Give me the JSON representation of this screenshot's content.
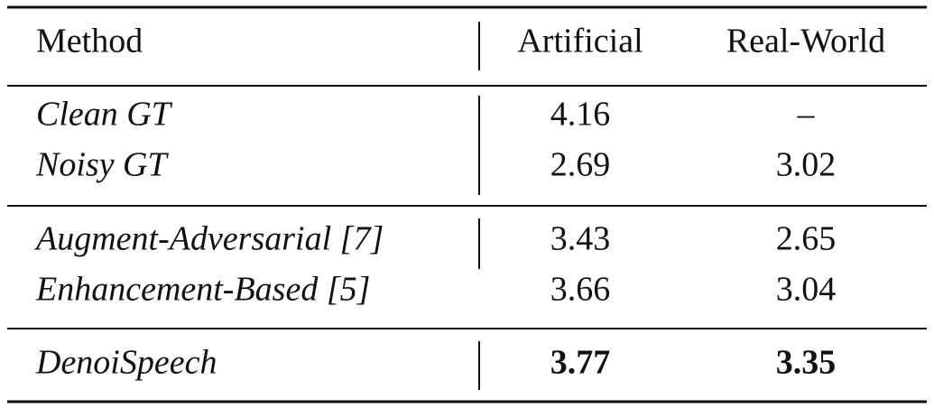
{
  "table": {
    "header": [
      "Method",
      "Artificial",
      "Real-World"
    ],
    "groups": [
      [
        [
          "Clean GT",
          "4.16",
          "–"
        ],
        [
          "Noisy GT",
          "2.69",
          "3.02"
        ]
      ],
      [
        [
          "Augment-Adversarial [7]",
          "3.43",
          "2.65"
        ],
        [
          "Enhancement-Based [5]",
          "3.66",
          "3.04"
        ]
      ],
      [
        [
          "DenoiSpeech",
          "3.77",
          "3.35"
        ]
      ]
    ]
  }
}
